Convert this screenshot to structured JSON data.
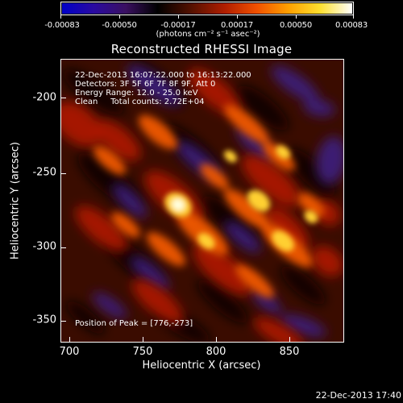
{
  "colorbar": {
    "tick_labels": [
      "-0.00083",
      "-0.00050",
      "-0.00017",
      "0.00017",
      "0.00050",
      "0.00083"
    ],
    "units_label": "(photons cm⁻² s⁻¹ asec⁻²)"
  },
  "plot": {
    "title": "Reconstructed RHESSI Image",
    "info_lines": [
      "22-Dec-2013 16:07:22.000 to 16:13:22.000",
      "Detectors: 3F 5F 6F 7F 8F 9F, Att 0",
      "Energy Range: 12.0 - 25.0 keV",
      "Clean     Total counts: 2.72E+04"
    ],
    "peak_text": "Position of Peak = [776,-273]",
    "x_axis_label": "Heliocentric X (arcsec)",
    "y_axis_label": "Heliocentric Y (arcsec)",
    "x_ticks": [
      "700",
      "750",
      "800",
      "850"
    ],
    "y_ticks": [
      "-200",
      "-250",
      "-300",
      "-350"
    ]
  },
  "footer": {
    "timestamp": "22-Dec-2013 17:40"
  },
  "colors": {
    "background": "#000000",
    "text": "#ffffff",
    "colormap": [
      "#0000c8",
      "#2a0aa0",
      "#3a1060",
      "#000000",
      "#501000",
      "#b01e00",
      "#f05000",
      "#ffa000",
      "#ffe030",
      "#ffffff"
    ]
  }
}
